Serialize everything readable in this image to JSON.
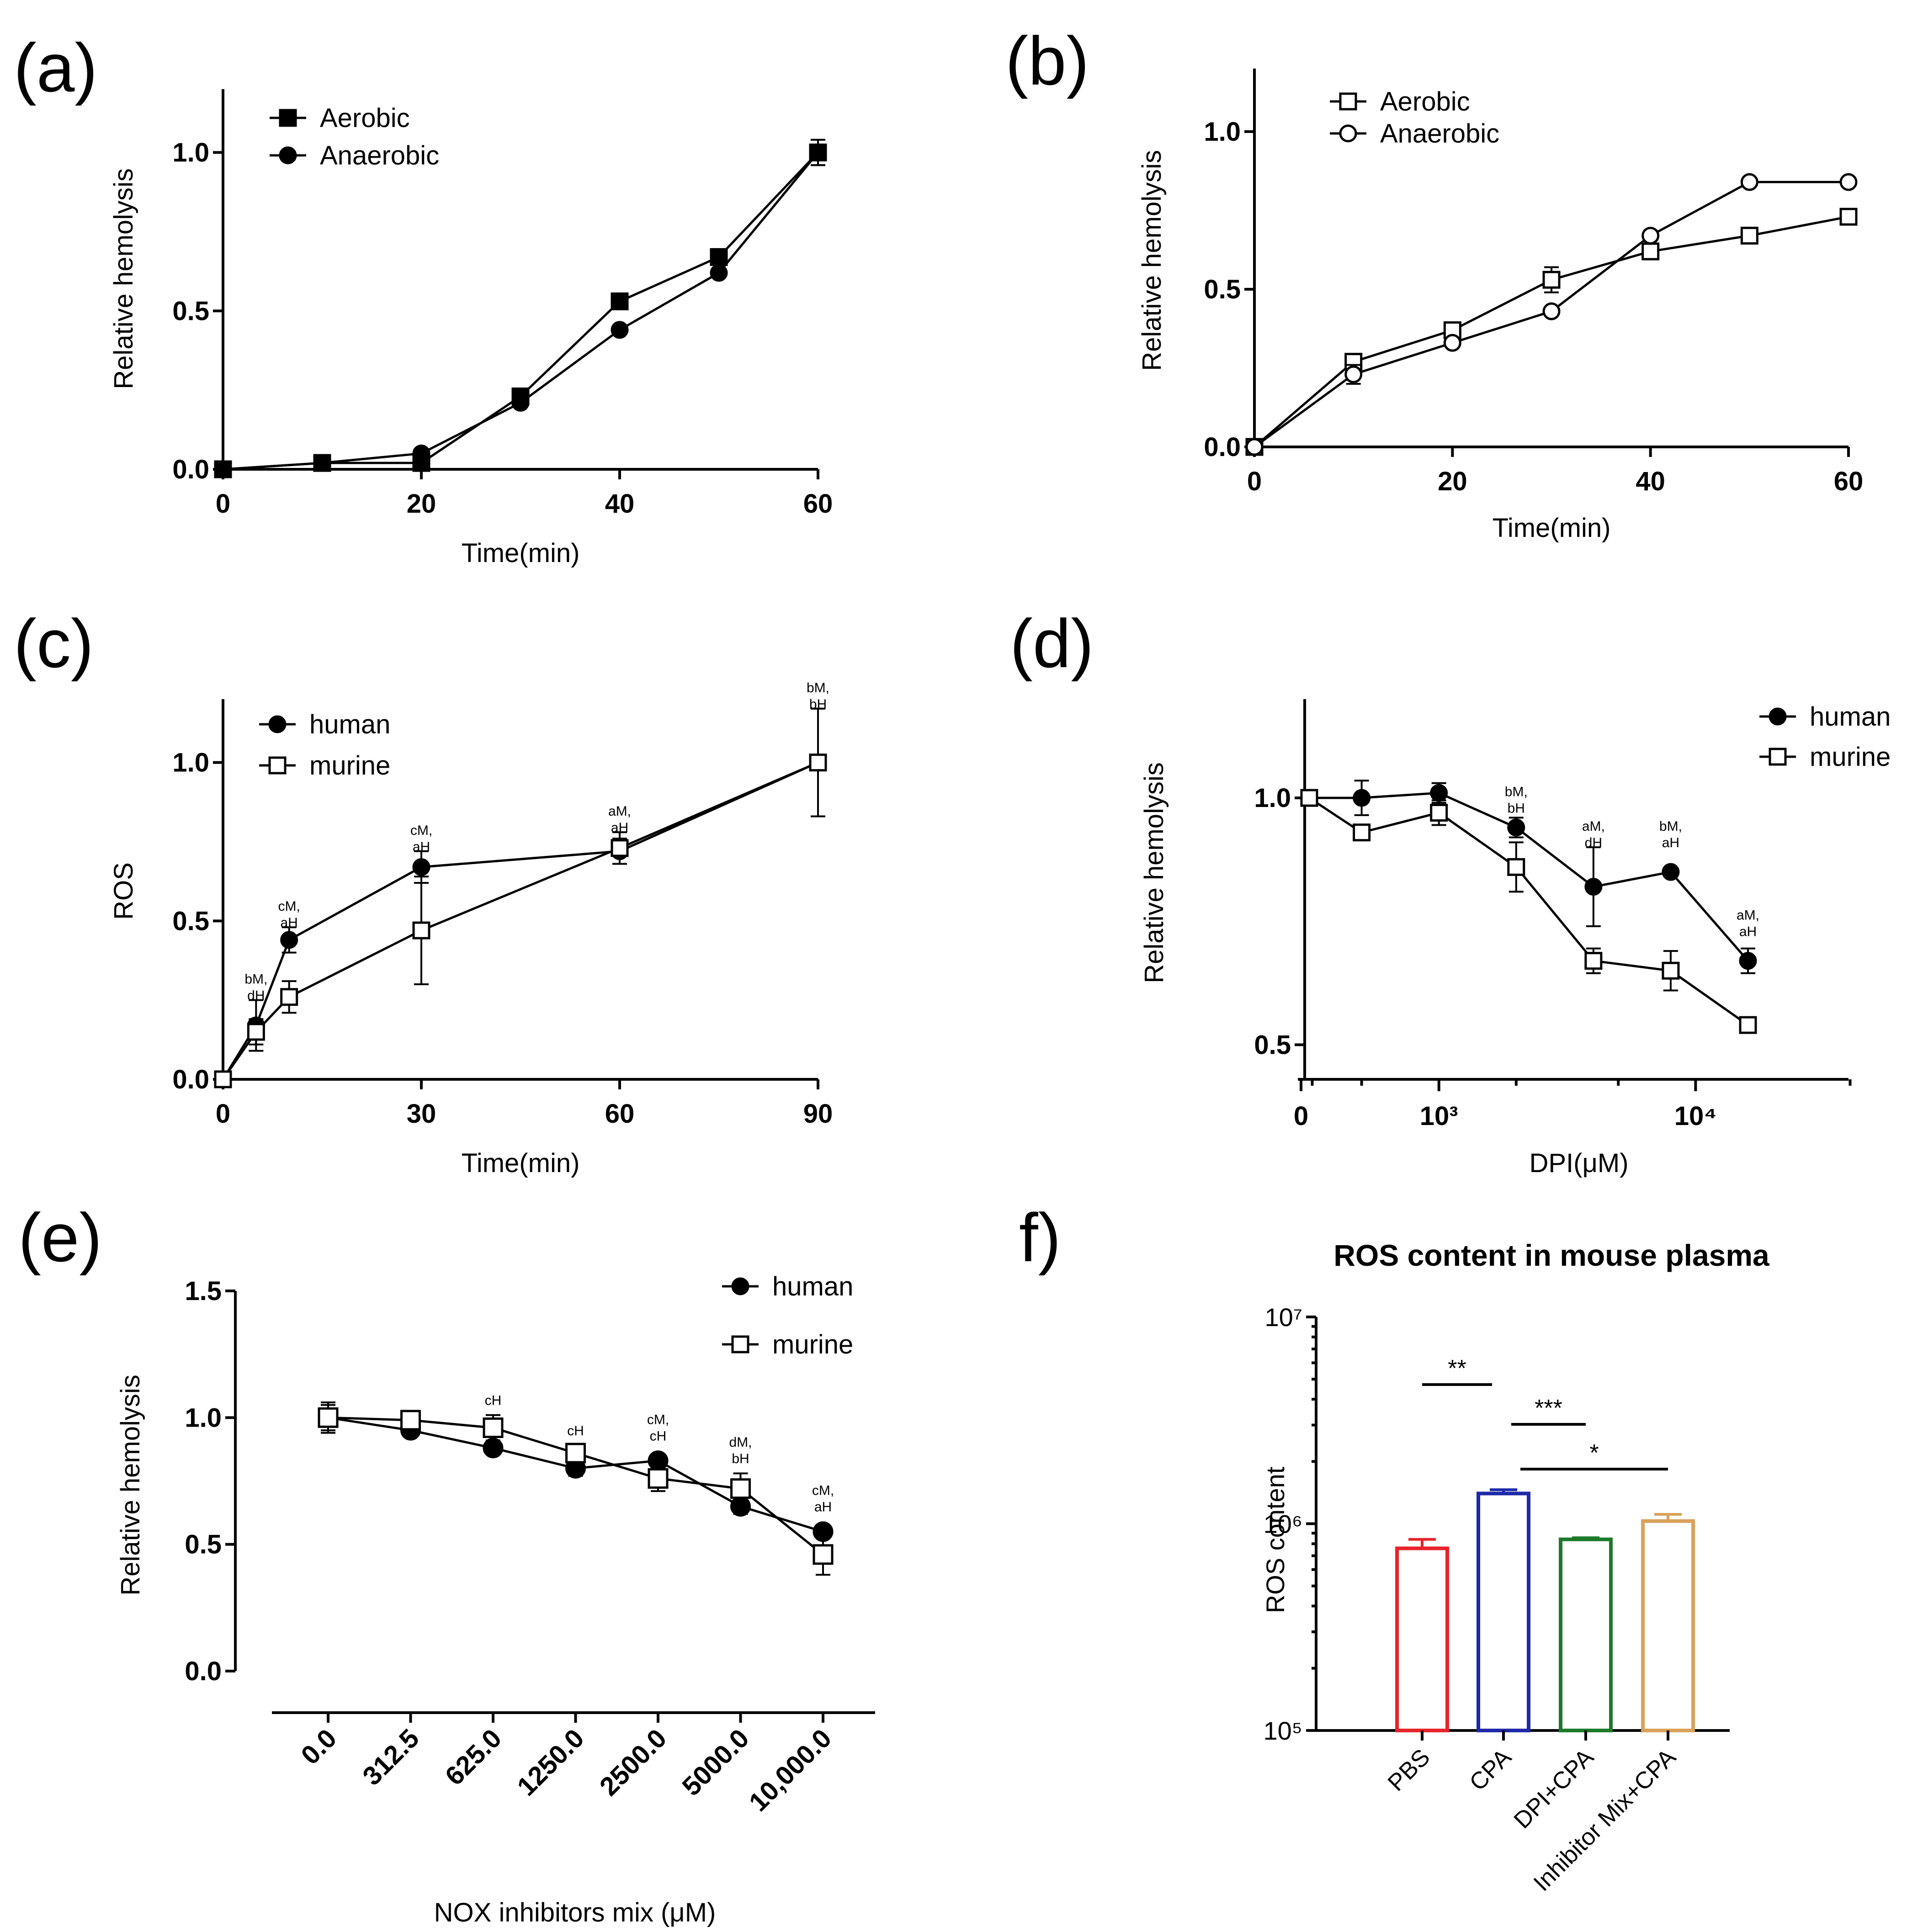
{
  "chart_data": [
    {
      "id": "a",
      "type": "line",
      "panel_label": "(a)",
      "xlabel": "Time(min)",
      "ylabel": "Relative hemolysis",
      "xlim": [
        0,
        60
      ],
      "ylim": [
        0,
        1.2
      ],
      "xticks": [
        0,
        20,
        40,
        60
      ],
      "xtick_labels": [
        "0",
        "20",
        "40",
        "60"
      ],
      "yticks": [
        0.0,
        0.5,
        1.0
      ],
      "ytick_labels": [
        "0.0",
        "0.5",
        "1.0"
      ],
      "legend": [
        "Aerobic",
        "Anaerobic"
      ],
      "series": [
        {
          "name": "Aerobic",
          "marker": "square-filled",
          "x": [
            0,
            10,
            20,
            30,
            40,
            50,
            60
          ],
          "values": [
            0.0,
            0.02,
            0.02,
            0.23,
            0.53,
            0.67,
            1.0
          ],
          "err": [
            0,
            0,
            0,
            0,
            0,
            0,
            0.04
          ]
        },
        {
          "name": "Anaerobic",
          "marker": "circle-filled",
          "x": [
            0,
            10,
            20,
            30,
            40,
            50,
            60
          ],
          "values": [
            0.0,
            0.02,
            0.05,
            0.21,
            0.44,
            0.62,
            1.0
          ],
          "err": [
            0,
            0,
            0,
            0,
            0,
            0,
            0.04
          ]
        }
      ]
    },
    {
      "id": "b",
      "type": "line",
      "panel_label": "(b)",
      "xlabel": "Time(min)",
      "ylabel": "Relative hemolysis",
      "xlim": [
        0,
        60
      ],
      "ylim": [
        0,
        1.2
      ],
      "xticks": [
        0,
        20,
        40,
        60
      ],
      "xtick_labels": [
        "0",
        "20",
        "40",
        "60"
      ],
      "yticks": [
        0.0,
        0.5,
        1.0
      ],
      "ytick_labels": [
        "0.0",
        "0.5",
        "1.0"
      ],
      "legend": [
        "Aerobic",
        "Anaerobic"
      ],
      "series": [
        {
          "name": "Aerobic",
          "marker": "square-open",
          "x": [
            0,
            10,
            20,
            30,
            40,
            50,
            60
          ],
          "values": [
            0.0,
            0.27,
            0.37,
            0.53,
            0.62,
            0.67,
            0.73
          ],
          "err": [
            0,
            0.02,
            0.02,
            0.04,
            0,
            0,
            0
          ]
        },
        {
          "name": "Anaerobic",
          "marker": "circle-open",
          "x": [
            0,
            10,
            20,
            30,
            40,
            50,
            60
          ],
          "values": [
            0.0,
            0.23,
            0.33,
            0.43,
            0.67,
            0.84,
            0.84
          ],
          "err": [
            0,
            0.03,
            0,
            0,
            0,
            0,
            0
          ]
        }
      ]
    },
    {
      "id": "c",
      "type": "line",
      "panel_label": "(c)",
      "xlabel": "Time(min)",
      "ylabel": "ROS",
      "xlim": [
        0,
        90
      ],
      "ylim": [
        0,
        1.2
      ],
      "xticks": [
        0,
        30,
        60,
        90
      ],
      "xtick_labels": [
        "0",
        "30",
        "60",
        "90"
      ],
      "yticks": [
        0.0,
        0.5,
        1.0
      ],
      "ytick_labels": [
        "0.0",
        "0.5",
        "1.0"
      ],
      "legend": [
        "human",
        "murine"
      ],
      "series": [
        {
          "name": "human",
          "marker": "circle-filled",
          "x": [
            0,
            5,
            10,
            30,
            60,
            90
          ],
          "values": [
            0.0,
            0.17,
            0.44,
            0.67,
            0.72,
            1.0
          ],
          "err": [
            0,
            0.08,
            0.04,
            0.05,
            0.04,
            0.17
          ]
        },
        {
          "name": "murine",
          "marker": "square-open",
          "x": [
            0,
            5,
            10,
            30,
            60,
            90
          ],
          "values": [
            0.0,
            0.15,
            0.26,
            0.47,
            0.73,
            1.0
          ],
          "err": [
            0,
            0.04,
            0.05,
            0.17,
            0.05,
            0.17
          ]
        }
      ],
      "annotations": [
        {
          "x": 5,
          "y": 0.25,
          "lines": [
            "bM,",
            "dH"
          ]
        },
        {
          "x": 10,
          "y": 0.48,
          "lines": [
            "cM,",
            "aH"
          ]
        },
        {
          "x": 30,
          "y": 0.72,
          "lines": [
            "cM,",
            "aH"
          ]
        },
        {
          "x": 60,
          "y": 0.78,
          "lines": [
            "aM,",
            "aH"
          ]
        },
        {
          "x": 90,
          "y": 1.17,
          "lines": [
            "bM,",
            "bH"
          ]
        }
      ]
    },
    {
      "id": "d",
      "type": "line",
      "panel_label": "(d)",
      "xlabel": "DPI(μM)",
      "ylabel": "Relative hemolysis",
      "xscale": "log",
      "ylim": [
        0.43,
        1.2
      ],
      "xtick_labels": [
        "0",
        "10³",
        "10⁴"
      ],
      "yticks": [
        0.5,
        1.0
      ],
      "ytick_labels": [
        "0.5",
        "1.0"
      ],
      "legend": [
        "human",
        "murine"
      ],
      "series": [
        {
          "name": "human",
          "marker": "circle-filled",
          "x": [
            312.5,
            500,
            1000,
            2000,
            4000,
            8000,
            16000
          ],
          "values": [
            1.0,
            1.0,
            1.01,
            0.94,
            0.82,
            0.85,
            0.67
          ],
          "err": [
            0,
            0.035,
            0.02,
            0.02,
            0.08,
            0,
            0.025
          ]
        },
        {
          "name": "murine",
          "marker": "square-open",
          "x": [
            312.5,
            500,
            1000,
            2000,
            4000,
            8000,
            16000
          ],
          "values": [
            1.0,
            0.93,
            0.97,
            0.86,
            0.67,
            0.65,
            0.54
          ],
          "err": [
            0,
            0,
            0.025,
            0.05,
            0.025,
            0.04,
            0.015
          ]
        }
      ],
      "annotations": [
        {
          "x": 2000,
          "y": 0.97,
          "lines": [
            "bM,",
            "bH"
          ]
        },
        {
          "x": 4000,
          "y": 0.9,
          "lines": [
            "aM,",
            "dH"
          ]
        },
        {
          "x": 8000,
          "y": 0.9,
          "lines": [
            "bM,",
            "aH"
          ]
        },
        {
          "x": 16000,
          "y": 0.72,
          "lines": [
            "aM,",
            "aH"
          ]
        }
      ]
    },
    {
      "id": "e",
      "type": "line",
      "panel_label": "(e)",
      "xlabel": "NOX inhibitors mix (μM)",
      "ylabel": "Relative hemolysis",
      "ylim": [
        0,
        1.5
      ],
      "categories": [
        "0.0",
        "312.5",
        "625.0",
        "1250.0",
        "2500.0",
        "5000.0",
        "10,000.0"
      ],
      "yticks": [
        0.0,
        0.5,
        1.0,
        1.5
      ],
      "ytick_labels": [
        "0.0",
        "0.5",
        "1.0",
        "1.5"
      ],
      "legend": [
        "human",
        "murine"
      ],
      "series": [
        {
          "name": "human",
          "marker": "circle-filled",
          "values": [
            1.0,
            0.95,
            0.88,
            0.8,
            0.83,
            0.65,
            0.55
          ],
          "err": [
            0.05,
            0,
            0,
            0.03,
            0,
            0.03,
            0
          ]
        },
        {
          "name": "murine",
          "marker": "square-open",
          "values": [
            1.0,
            0.99,
            0.96,
            0.86,
            0.76,
            0.72,
            0.46
          ],
          "err": [
            0.06,
            0,
            0.05,
            0.02,
            0.05,
            0.06,
            0.08
          ]
        }
      ],
      "annotations": [
        {
          "index": 2,
          "y": 1.05,
          "lines": [
            "cH"
          ]
        },
        {
          "index": 3,
          "y": 0.93,
          "lines": [
            "cH"
          ]
        },
        {
          "index": 4,
          "y": 0.91,
          "lines": [
            "cM,",
            "cH"
          ]
        },
        {
          "index": 5,
          "y": 0.82,
          "lines": [
            "dM,",
            "bH"
          ]
        },
        {
          "index": 6,
          "y": 0.63,
          "lines": [
            "cM,",
            "aH"
          ]
        }
      ]
    },
    {
      "id": "f",
      "type": "bar",
      "panel_label": "f)",
      "title": "ROS content in mouse plasma",
      "xlabel": "",
      "ylabel": "ROS content",
      "yscale": "log",
      "ylim": [
        100000,
        10000000
      ],
      "ytick_labels": [
        "10⁵",
        "10⁶",
        "10⁷"
      ],
      "categories": [
        "PBS",
        "CPA",
        "DPI+CPA",
        "Inhibitor Mix+CPA"
      ],
      "values": [
        760000,
        1400000,
        840000,
        1030000
      ],
      "err": [
        80000,
        60000,
        15000,
        80000
      ],
      "colors": [
        "#e8232a",
        "#1f2aa8",
        "#1d7a2a",
        "#d9a25a"
      ],
      "significance": [
        {
          "from": 0,
          "to": 1,
          "label": "**"
        },
        {
          "from": 1,
          "to": 2,
          "label": "***"
        },
        {
          "from": 1,
          "to": 3,
          "label": "*"
        }
      ]
    }
  ]
}
